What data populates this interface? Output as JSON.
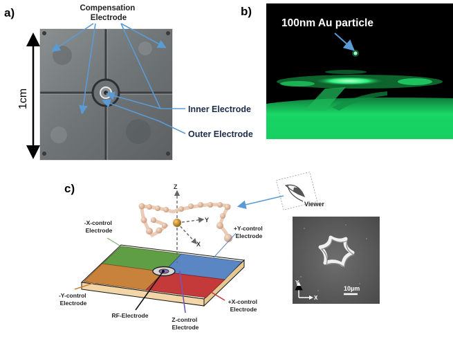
{
  "panels": {
    "a": {
      "label": "a)",
      "scale_label": "1cm",
      "compensation": [
        "Compensation",
        "Electrode"
      ],
      "inner": "Inner Electrode",
      "outer": "Outer Electrode"
    },
    "b": {
      "label": "b)",
      "particle": "100nm Au particle"
    },
    "c": {
      "label": "c)",
      "axis_z": "Z",
      "axis_y": "Y",
      "axis_x": "X",
      "viewer": "Viewer",
      "neg_x": [
        "-X-control",
        "Electrode"
      ],
      "pos_y": [
        "+Y-control",
        "Electrode"
      ],
      "neg_y": [
        "-Y-control",
        "Electrode"
      ],
      "pos_x": [
        "+X-control",
        "Electrode"
      ],
      "rf": "RF-Electrode",
      "zctl": [
        "Z-control",
        "Electrode"
      ],
      "sem_y": "Y",
      "sem_x": "X",
      "scalebar": "10µm"
    }
  },
  "colors": {
    "callout": "#5b9bd5",
    "neg_x_electrode": "#5f9e45",
    "pos_y_electrode": "#5b86c4",
    "neg_y_electrode": "#c9823c",
    "pos_x_electrode": "#c43a3a",
    "laser_green": "#19e06a"
  }
}
